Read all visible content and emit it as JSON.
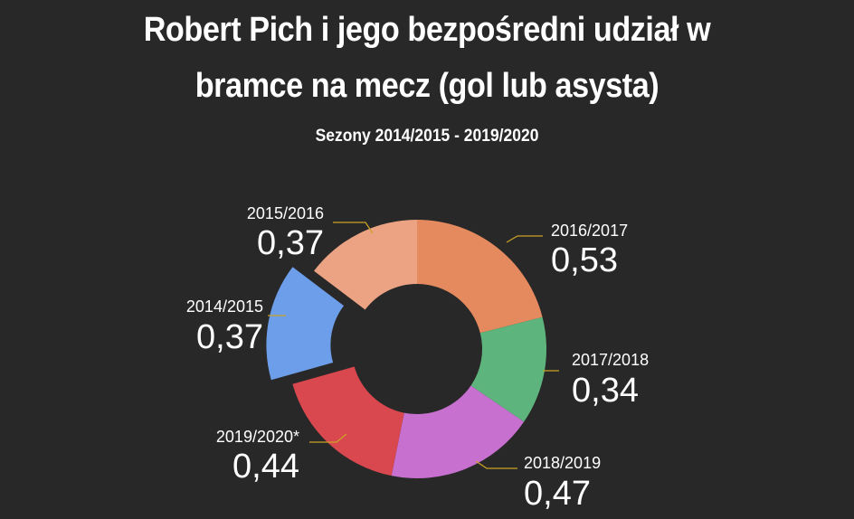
{
  "title_line1": "Robert Pich i jego bezpośredni udział w",
  "title_line2": "bramce na mecz (gol lub asysta)",
  "subtitle": "Sezony 2014/2015 - 2019/2020",
  "chart_data": {
    "type": "pie",
    "variant": "donut",
    "categories": [
      "2014/2015",
      "2015/2016",
      "2016/2017",
      "2017/2018",
      "2018/2019",
      "2019/2020*"
    ],
    "values": [
      0.37,
      0.37,
      0.53,
      0.34,
      0.47,
      0.44
    ],
    "value_labels": [
      "0,37",
      "0,37",
      "0,53",
      "0,34",
      "0,47",
      "0,44"
    ],
    "colors": [
      "#6d9ee9",
      "#eba383",
      "#e48a5e",
      "#5eb47d",
      "#c770cf",
      "#d9484e"
    ],
    "exploded": [
      "2014/2015"
    ],
    "leader_line_color": "#c9a227"
  }
}
